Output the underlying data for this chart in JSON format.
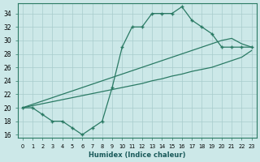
{
  "xlabel": "Humidex (Indice chaleur)",
  "ylabel": "",
  "x": [
    0,
    1,
    2,
    3,
    4,
    5,
    6,
    7,
    8,
    9,
    10,
    11,
    12,
    13,
    14,
    15,
    16,
    17,
    18,
    19,
    20,
    21,
    22,
    23
  ],
  "line_jagged": [
    20,
    20,
    19,
    18,
    18,
    17,
    16,
    17,
    18,
    23,
    29,
    32,
    32,
    34,
    34,
    34,
    35,
    33,
    32,
    31,
    29,
    29,
    29,
    29
  ],
  "line_upper": [
    20,
    20.5,
    21,
    21.5,
    22,
    22.5,
    23,
    23.5,
    24,
    24.5,
    25,
    25.5,
    26,
    26.5,
    27,
    27.5,
    28,
    28.5,
    29,
    29.5,
    30,
    30.3,
    29.5,
    29
  ],
  "line_lower": [
    20,
    20.3,
    20.6,
    20.9,
    21.2,
    21.5,
    21.8,
    22.1,
    22.4,
    22.7,
    23,
    23.3,
    23.6,
    24,
    24.3,
    24.7,
    25,
    25.4,
    25.7,
    26,
    26.5,
    27,
    27.5,
    28.5
  ],
  "ylim": [
    15.5,
    35.5
  ],
  "xlim": [
    -0.5,
    23.5
  ],
  "yticks": [
    16,
    18,
    20,
    22,
    24,
    26,
    28,
    30,
    32,
    34
  ],
  "xticks": [
    0,
    1,
    2,
    3,
    4,
    5,
    6,
    7,
    8,
    9,
    10,
    11,
    12,
    13,
    14,
    15,
    16,
    17,
    18,
    19,
    20,
    21,
    22,
    23
  ],
  "line_color": "#2a7a64",
  "bg_color": "#cce8e8",
  "grid_color": "#a8cccc",
  "marker": "+"
}
